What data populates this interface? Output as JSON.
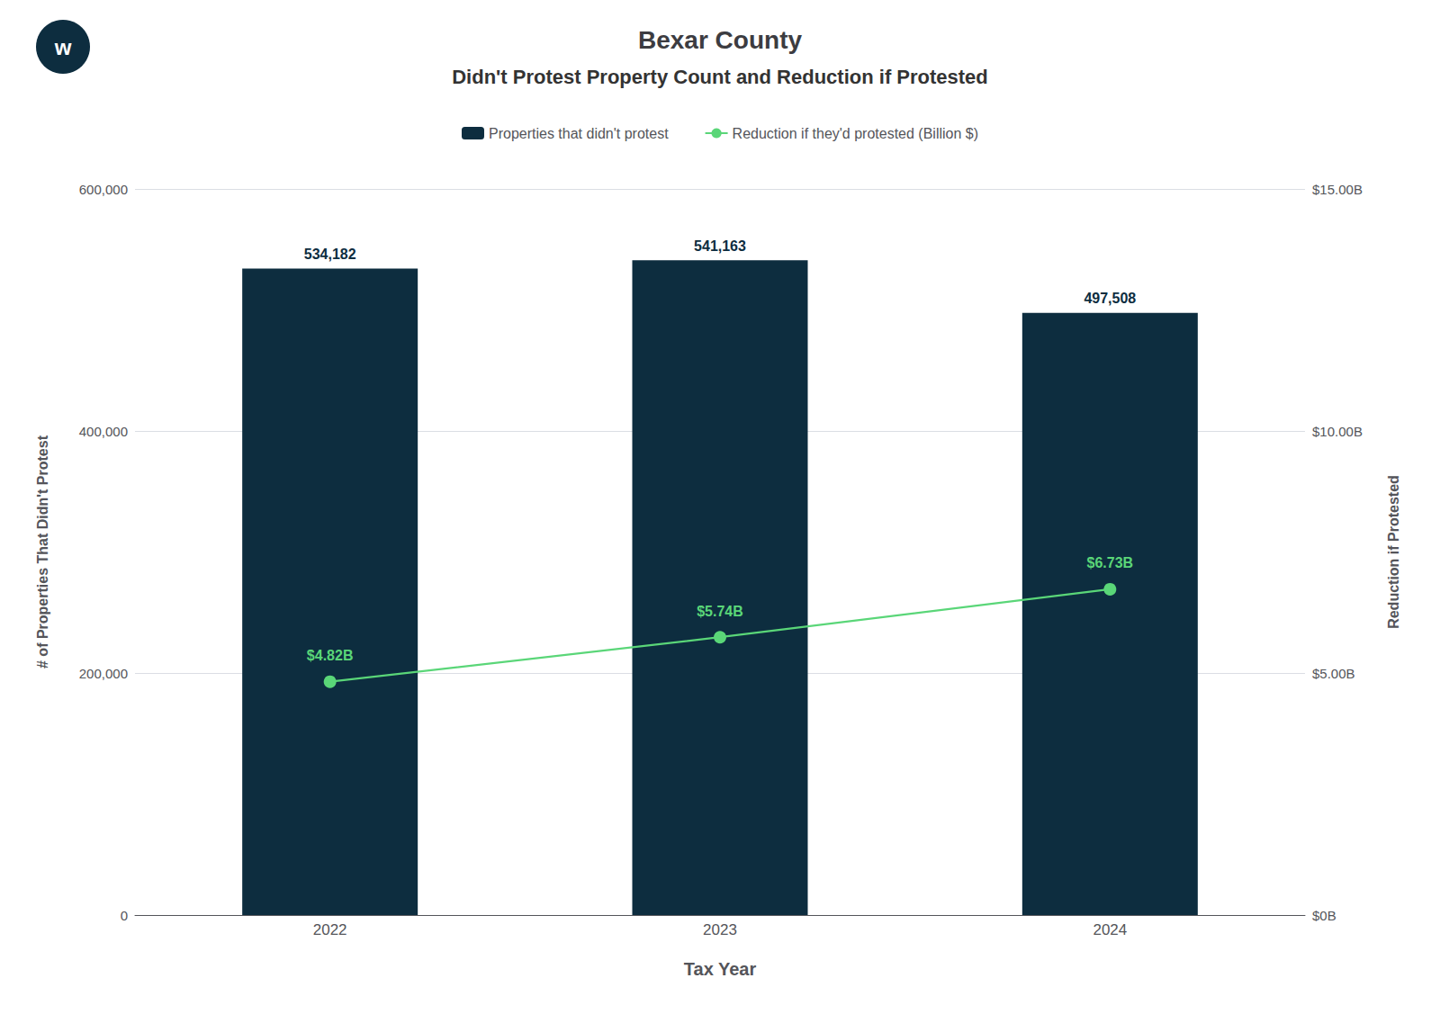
{
  "chart_data": {
    "type": "bar",
    "title": "Bexar County",
    "subtitle": "Didn't Protest Property Count and Reduction if Protested",
    "categories": [
      "2022",
      "2023",
      "2024"
    ],
    "xlabel": "Tax Year",
    "ylabel": "# of Properties That Didn't Protest",
    "y2label": "Reduction if Protested",
    "series": [
      {
        "name": "Properties that didn't protest",
        "type": "bar",
        "color": "#0d2d3f",
        "values": [
          534182,
          541163,
          497508
        ],
        "value_labels": [
          "534,182",
          "541,163",
          "497,508"
        ]
      },
      {
        "name": "Reduction if they'd protested (Billion $)",
        "type": "line",
        "axis": "y2",
        "color": "#5ad678",
        "marker": "circle",
        "values": [
          4.82,
          5.74,
          6.73
        ],
        "value_labels": [
          "$4.82B",
          "$5.74B",
          "$6.73B"
        ]
      }
    ],
    "ylim": [
      0,
      600000
    ],
    "yticks": [
      0,
      {
        "value": 200000,
        "label": "200,000"
      },
      {
        "value": 400000,
        "label": "400,000"
      },
      {
        "value": 600000,
        "label": "600,000"
      }
    ],
    "y2lim": [
      0,
      15.0
    ],
    "y2ticks": [
      {
        "value": 0,
        "label": "$0B"
      },
      {
        "value": 5.0,
        "label": "$5.00B"
      },
      {
        "value": 10.0,
        "label": "$10.00B"
      },
      {
        "value": 15.0,
        "label": "$15.00B"
      }
    ],
    "grid": true,
    "legend": "top",
    "data_labels": true,
    "annotations": [
      "w"
    ]
  }
}
